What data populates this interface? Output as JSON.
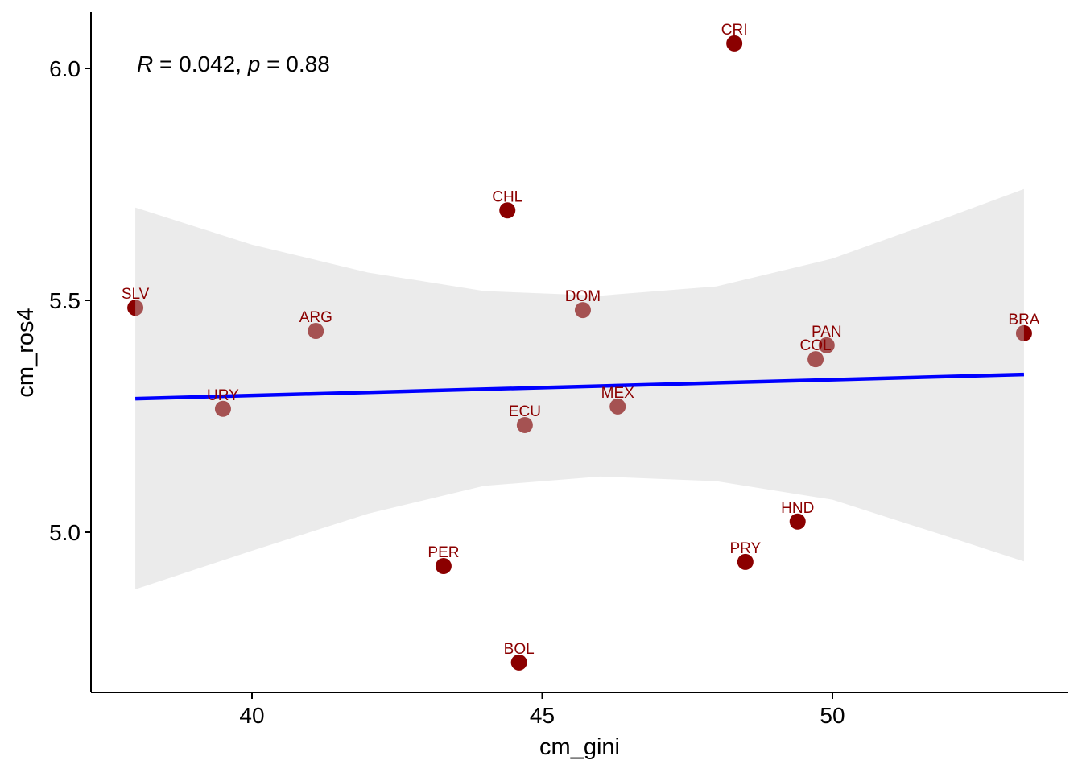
{
  "chart_data": {
    "type": "scatter",
    "xlabel": "cm_gini",
    "ylabel": "cm_ros4",
    "xlim": [
      37.2,
      54.0
    ],
    "ylim": [
      4.66,
      6.12
    ],
    "x_ticks": [
      40,
      45,
      50
    ],
    "x_tick_labels": [
      "40",
      "45",
      "50"
    ],
    "y_ticks": [
      5.0,
      5.5,
      6.0
    ],
    "y_tick_labels": [
      "5.0",
      "5.5",
      "6.0"
    ],
    "grid": false,
    "annotation": {
      "r_label": "R",
      "r_text": " = 0.042, ",
      "p_label": "p",
      "p_text": " = 0.88"
    },
    "point_color": "#8B0000",
    "label_color": "#8B0000",
    "line_color": "#0000FF",
    "band_color": "#cccccc",
    "points": [
      {
        "label": "CRI",
        "x": 48.31,
        "y": 6.054
      },
      {
        "label": "CHL",
        "x": 44.4,
        "y": 5.694
      },
      {
        "label": "SLV",
        "x": 37.99,
        "y": 5.484
      },
      {
        "label": "ARG",
        "x": 41.1,
        "y": 5.434
      },
      {
        "label": "DOM",
        "x": 45.7,
        "y": 5.479
      },
      {
        "label": "PAN",
        "x": 49.9,
        "y": 5.403
      },
      {
        "label": "COL",
        "x": 49.71,
        "y": 5.373
      },
      {
        "label": "BRA",
        "x": 53.3,
        "y": 5.429
      },
      {
        "label": "URY",
        "x": 39.5,
        "y": 5.266
      },
      {
        "label": "ECU",
        "x": 44.7,
        "y": 5.231
      },
      {
        "label": "MEX",
        "x": 46.3,
        "y": 5.271
      },
      {
        "label": "HND",
        "x": 49.4,
        "y": 5.023
      },
      {
        "label": "PRY",
        "x": 48.5,
        "y": 4.936
      },
      {
        "label": "PER",
        "x": 43.3,
        "y": 4.927
      },
      {
        "label": "BOL",
        "x": 44.6,
        "y": 4.719
      }
    ],
    "regression": {
      "x": [
        37.99,
        53.3
      ],
      "y": [
        5.288,
        5.34
      ]
    },
    "confidence_band": {
      "x": [
        37.99,
        40.0,
        42.0,
        44.0,
        46.0,
        48.0,
        50.0,
        52.0,
        53.3
      ],
      "upper": [
        5.7,
        5.62,
        5.56,
        5.52,
        5.51,
        5.53,
        5.59,
        5.68,
        5.74
      ],
      "lower": [
        4.877,
        4.96,
        5.04,
        5.1,
        5.12,
        5.11,
        5.07,
        4.99,
        4.937
      ]
    }
  }
}
